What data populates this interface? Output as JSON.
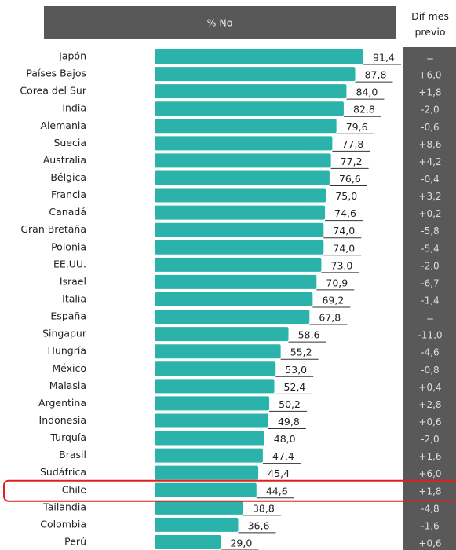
{
  "chart_data": {
    "type": "bar",
    "orientation": "horizontal",
    "header": "% No",
    "side_header": "Dif mes previo",
    "categories": [
      "Japón",
      "Países Bajos",
      "Corea del Sur",
      "India",
      "Alemania",
      "Suecia",
      "Australia",
      "Bélgica",
      "Francia",
      "Canadá",
      "Gran Bretaña",
      "Polonia",
      "EE.UU.",
      "Israel",
      "Italia",
      "España",
      "Singapur",
      "Hungría",
      "México",
      "Malasia",
      "Argentina",
      "Indonesia",
      "Turquía",
      "Brasil",
      "Sudáfrica",
      "Chile",
      "Tailandia",
      "Colombia",
      "Perú"
    ],
    "values": [
      91.4,
      87.8,
      84.0,
      82.8,
      79.6,
      77.8,
      77.2,
      76.6,
      75.0,
      74.6,
      74.0,
      74.0,
      73.0,
      70.9,
      69.2,
      67.8,
      58.6,
      55.2,
      53.0,
      52.4,
      50.2,
      49.8,
      48.0,
      47.4,
      45.4,
      44.6,
      38.8,
      36.6,
      29.0
    ],
    "value_labels": [
      "91,4",
      "87,8",
      "84,0",
      "82,8",
      "79,6",
      "77,8",
      "77,2",
      "76,6",
      "75,0",
      "74,6",
      "74,0",
      "74,0",
      "73,0",
      "70,9",
      "69,2",
      "67,8",
      "58,6",
      "55,2",
      "53,0",
      "52,4",
      "50,2",
      "49,8",
      "48,0",
      "47,4",
      "45,4",
      "44,6",
      "38,8",
      "36,6",
      "29,0"
    ],
    "dif_values": [
      "=",
      "+6,0",
      "+1,8",
      "-2,0",
      "-0,6",
      "+8,6",
      "+4,2",
      "-0,4",
      "+3,2",
      "+0,2",
      "-5,8",
      "-5,4",
      "-2,0",
      "-6,7",
      "-1,4",
      "=",
      "-11,0",
      "-4,6",
      "-0,8",
      "+0,4",
      "+2,8",
      "+0,6",
      "-2,0",
      "+1,6",
      "+6,0",
      "+1,8",
      "-4,8",
      "-1,6",
      "+0,6"
    ],
    "color": "#2bb3ab",
    "xlim": [
      0,
      100
    ]
  }
}
